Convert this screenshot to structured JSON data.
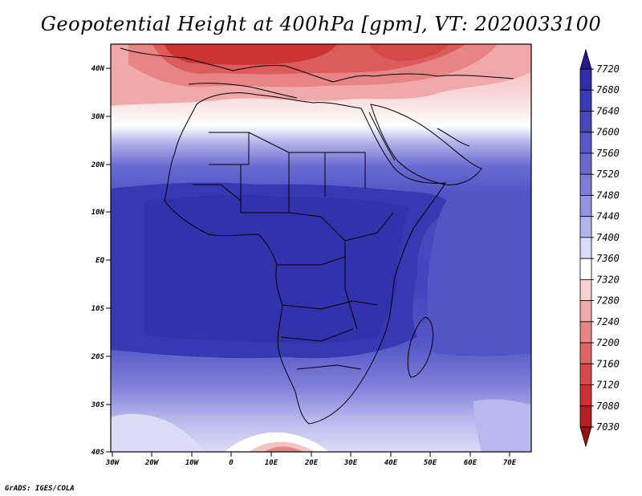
{
  "title": "Geopotential Height at 400hPa [gpm], VT: 2020033100",
  "credit": "GrADS: IGES/COLA",
  "map": {
    "lat_labels": [
      "40N",
      "30N",
      "20N",
      "10N",
      "EQ",
      "10S",
      "20S",
      "30S",
      "40S"
    ],
    "lon_labels": [
      "30W",
      "20W",
      "10W",
      "0",
      "10E",
      "20E",
      "30E",
      "40E",
      "50E",
      "60E",
      "70E"
    ],
    "field": "Geopotential Height",
    "level": "400hPa",
    "units": "gpm",
    "valid_time": "2020033100"
  },
  "colorbar": {
    "levels": [
      "7720",
      "7680",
      "7640",
      "7600",
      "7560",
      "7520",
      "7480",
      "7440",
      "7400",
      "7360",
      "7320",
      "7280",
      "7240",
      "7200",
      "7160",
      "7120",
      "7080",
      "7030"
    ],
    "colors": [
      "#261a91",
      "#2e2ea8",
      "#3a3ab4",
      "#4646bf",
      "#5656c8",
      "#6868d0",
      "#7c7cd9",
      "#9494e2",
      "#b4b4ec",
      "#dcdcf7",
      "#ffffff",
      "#f8d0d0",
      "#f0a8a8",
      "#e88484",
      "#e06464",
      "#d84848",
      "#cc3030",
      "#b51e1e",
      "#9a1010"
    ]
  }
}
